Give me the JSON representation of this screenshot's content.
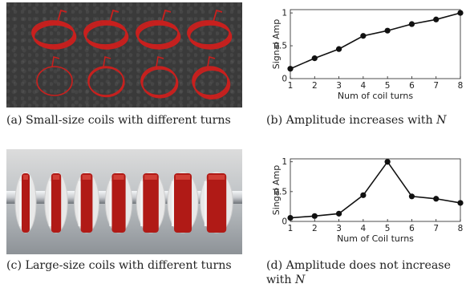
{
  "figure": {
    "captions": {
      "a": "(a)  Small-size coils with different turns",
      "b_prefix": "(b)  Amplitude increases with ",
      "b_var": "N",
      "c": "(c)  Large-size coils with different turns",
      "d_line1": "(d)  Amplitude does not increase",
      "d_line2_prefix": "with ",
      "d_var": "N"
    },
    "photos": {
      "a": {
        "coils_top_row": 4,
        "coils_bottom_row": 4,
        "coil_color": "#c8201e",
        "background_color": "#3a3a3a"
      },
      "c": {
        "rings": 7,
        "ring_color": "#b01a16",
        "rod_color": "#c9ccd0"
      }
    }
  },
  "chart_data": [
    {
      "type": "line",
      "panel": "b",
      "x": [
        1,
        2,
        3,
        4,
        5,
        6,
        7,
        8
      ],
      "series": [
        {
          "values": [
            0.15,
            0.31,
            0.45,
            0.65,
            0.73,
            0.83,
            0.9,
            1.0
          ]
        }
      ],
      "xlabel": "Num of coil turns",
      "ylabel": "Signal Amp",
      "xticks": [
        "1",
        "2",
        "3",
        "4",
        "5",
        "6",
        "7",
        "8"
      ],
      "yticks": [
        "0",
        "0.5",
        "1"
      ],
      "xlim": [
        1,
        8
      ],
      "ylim": [
        0,
        1.05
      ],
      "grid": false,
      "marker": "circle"
    },
    {
      "type": "line",
      "panel": "d",
      "x": [
        1,
        2,
        3,
        4,
        5,
        6,
        7,
        8
      ],
      "series": [
        {
          "values": [
            0.06,
            0.09,
            0.13,
            0.44,
            1.0,
            0.42,
            0.38,
            0.31
          ]
        }
      ],
      "xlabel": "Num of Coil turns",
      "ylabel": "Singal Amp",
      "xticks": [
        "1",
        "2",
        "3",
        "4",
        "5",
        "6",
        "7",
        "8"
      ],
      "yticks": [
        "0",
        "0.5",
        "1"
      ],
      "xlim": [
        1,
        8
      ],
      "ylim": [
        0,
        1.05
      ],
      "grid": false,
      "marker": "circle"
    }
  ]
}
